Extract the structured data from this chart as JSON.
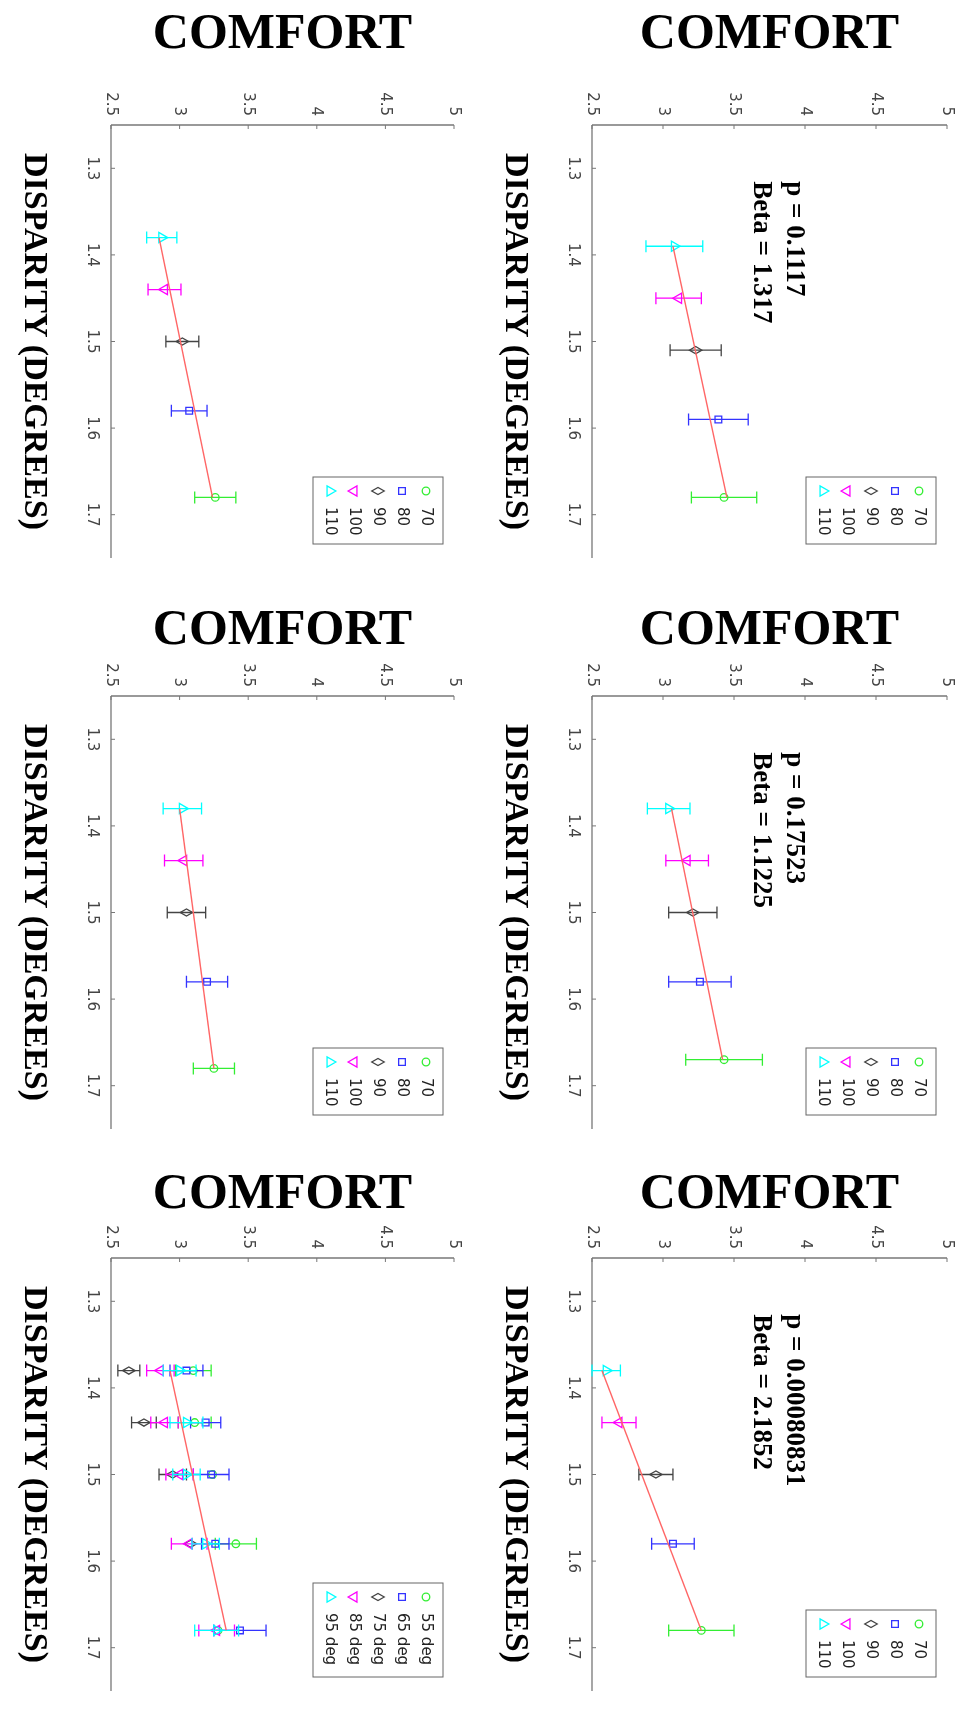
{
  "chart_data": [
    {
      "type": "scatter",
      "title": "COMFORT",
      "ylabel": "DISPARITY (DEGREES)",
      "xlim": [
        2.5,
        5
      ],
      "xticks": [
        2.5,
        3,
        3.5,
        4,
        4.5,
        5
      ],
      "ylim": [
        1.75,
        1.25
      ],
      "yticks": [
        1.3,
        1.4,
        1.5,
        1.6,
        1.7
      ],
      "legend": "bottom right",
      "series": [
        {
          "name": "70",
          "color": "#33ee33",
          "marker": "circle",
          "x": [
            3.26
          ],
          "values": [
            1.68
          ],
          "xerrors": [
            0.15
          ]
        },
        {
          "name": "80",
          "color": "#3333ff",
          "marker": "square",
          "x": [
            3.07
          ],
          "values": [
            1.58
          ],
          "xerrors": [
            0.13
          ]
        },
        {
          "name": "90",
          "color": "#444444",
          "marker": "diamond",
          "x": [
            3.02
          ],
          "values": [
            1.5
          ],
          "xerrors": [
            0.12
          ]
        },
        {
          "name": "100",
          "color": "#ff00ff",
          "marker": "triangle-down",
          "x": [
            2.89
          ],
          "values": [
            1.44
          ],
          "xerrors": [
            0.12
          ]
        },
        {
          "name": "110",
          "color": "#00ffff",
          "marker": "triangle",
          "x": [
            2.87
          ],
          "values": [
            1.38
          ],
          "xerrors": [
            0.11
          ]
        },
        {
          "type": "line",
          "color": "#ff6666",
          "x": [
            2.85,
            3.24
          ],
          "values": [
            1.38,
            1.68
          ]
        }
      ]
    },
    {
      "type": "scatter",
      "title": "COMFORT",
      "ylabel": "DISPARITY (DEGREES)",
      "xlim": [
        2.5,
        5
      ],
      "xticks": [
        2.5,
        3,
        3.5,
        4,
        4.5,
        5
      ],
      "ylim": [
        1.75,
        1.25
      ],
      "yticks": [
        1.3,
        1.4,
        1.5,
        1.6,
        1.7
      ],
      "legend": "bottom right",
      "annotations": [
        "p = 0.1117",
        "Beta = 1.317"
      ],
      "series": [
        {
          "name": "70",
          "color": "#33ee33",
          "marker": "circle",
          "x": [
            3.43
          ],
          "values": [
            1.68
          ],
          "xerrors": [
            0.23
          ]
        },
        {
          "name": "80",
          "color": "#3333ff",
          "marker": "square",
          "x": [
            3.39
          ],
          "values": [
            1.59
          ],
          "xerrors": [
            0.21
          ]
        },
        {
          "name": "90",
          "color": "#444444",
          "marker": "diamond",
          "x": [
            3.23
          ],
          "values": [
            1.51
          ],
          "xerrors": [
            0.18
          ]
        },
        {
          "name": "100",
          "color": "#ff00ff",
          "marker": "triangle-down",
          "x": [
            3.11
          ],
          "values": [
            1.45
          ],
          "xerrors": [
            0.16
          ]
        },
        {
          "name": "110",
          "color": "#00ffff",
          "marker": "triangle",
          "x": [
            3.08
          ],
          "values": [
            1.39
          ],
          "xerrors": [
            0.2
          ]
        },
        {
          "type": "line",
          "color": "#ff6666",
          "x": [
            3.07,
            3.45
          ],
          "values": [
            1.39,
            1.68
          ]
        }
      ]
    },
    {
      "type": "scatter",
      "title": "COMFORT",
      "ylabel": "DISPARITY (DEGREES)",
      "xlim": [
        2.5,
        5
      ],
      "xticks": [
        2.5,
        3,
        3.5,
        4,
        4.5,
        5
      ],
      "ylim": [
        1.75,
        1.25
      ],
      "yticks": [
        1.3,
        1.4,
        1.5,
        1.6,
        1.7
      ],
      "legend": "bottom right",
      "series": [
        {
          "name": "70",
          "color": "#33ee33",
          "marker": "circle",
          "x": [
            3.25
          ],
          "values": [
            1.68
          ],
          "xerrors": [
            0.15
          ]
        },
        {
          "name": "80",
          "color": "#3333ff",
          "marker": "square",
          "x": [
            3.2
          ],
          "values": [
            1.58
          ],
          "xerrors": [
            0.15
          ]
        },
        {
          "name": "90",
          "color": "#444444",
          "marker": "diamond",
          "x": [
            3.05
          ],
          "values": [
            1.5
          ],
          "xerrors": [
            0.14
          ]
        },
        {
          "name": "100",
          "color": "#ff00ff",
          "marker": "triangle-down",
          "x": [
            3.03
          ],
          "values": [
            1.44
          ],
          "xerrors": [
            0.14
          ]
        },
        {
          "name": "110",
          "color": "#00ffff",
          "marker": "triangle",
          "x": [
            3.02
          ],
          "values": [
            1.38
          ],
          "xerrors": [
            0.14
          ]
        },
        {
          "type": "line",
          "color": "#ff6666",
          "x": [
            3.0,
            3.25
          ],
          "values": [
            1.38,
            1.68
          ]
        }
      ]
    },
    {
      "type": "scatter",
      "title": "COMFORT",
      "ylabel": "DISPARITY (DEGREES)",
      "xlim": [
        2.5,
        5
      ],
      "xticks": [
        2.5,
        3,
        3.5,
        4,
        4.5,
        5
      ],
      "ylim": [
        1.75,
        1.25
      ],
      "yticks": [
        1.3,
        1.4,
        1.5,
        1.6,
        1.7
      ],
      "legend": "bottom right",
      "annotations": [
        "p = 0.17523",
        "Beta = 1.1225"
      ],
      "series": [
        {
          "name": "70",
          "color": "#33ee33",
          "marker": "circle",
          "x": [
            3.43
          ],
          "values": [
            1.67
          ],
          "xerrors": [
            0.27
          ]
        },
        {
          "name": "80",
          "color": "#3333ff",
          "marker": "square",
          "x": [
            3.26
          ],
          "values": [
            1.58
          ],
          "xerrors": [
            0.22
          ]
        },
        {
          "name": "90",
          "color": "#444444",
          "marker": "diamond",
          "x": [
            3.21
          ],
          "values": [
            1.5
          ],
          "xerrors": [
            0.17
          ]
        },
        {
          "name": "100",
          "color": "#ff00ff",
          "marker": "triangle-down",
          "x": [
            3.17
          ],
          "values": [
            1.44
          ],
          "xerrors": [
            0.15
          ]
        },
        {
          "name": "110",
          "color": "#00ffff",
          "marker": "triangle",
          "x": [
            3.04
          ],
          "values": [
            1.38
          ],
          "xerrors": [
            0.15
          ]
        },
        {
          "type": "line",
          "color": "#ff6666",
          "x": [
            3.06,
            3.42
          ],
          "values": [
            1.38,
            1.67
          ]
        }
      ]
    },
    {
      "type": "scatter",
      "title": "COMFORT",
      "ylabel": "DISPARITY (DEGREES)",
      "xlim": [
        2.5,
        5
      ],
      "xticks": [
        2.5,
        3,
        3.5,
        4,
        4.5,
        5
      ],
      "ylim": [
        1.75,
        1.25
      ],
      "yticks": [
        1.3,
        1.4,
        1.5,
        1.6,
        1.7
      ],
      "legend": "bottom right",
      "series": [
        {
          "name": "55 deg",
          "color": "#33ee33",
          "marker": "circle",
          "x": [
            3.1,
            3.11,
            3.24,
            3.41,
            3.28
          ],
          "values": [
            1.38,
            1.44,
            1.5,
            1.58,
            1.68
          ],
          "xerrors": [
            0.13,
            0.12,
            null,
            0.15,
            null
          ]
        },
        {
          "name": "65 deg",
          "color": "#3333ff",
          "marker": "square",
          "x": [
            3.05,
            3.19,
            3.23,
            3.26,
            3.44
          ],
          "values": [
            1.38,
            1.44,
            1.5,
            1.58,
            1.68
          ],
          "xerrors": [
            0.12,
            0.11,
            0.13,
            0.1,
            0.19
          ]
        },
        {
          "name": "75 deg",
          "color": "#444444",
          "marker": "diamond",
          "x": [
            2.63,
            2.74,
            2.95,
            3.08,
            null
          ],
          "values": [
            1.38,
            1.44,
            1.5,
            1.58,
            null
          ],
          "xerrors": [
            0.08,
            0.09,
            0.1,
            null,
            null
          ]
        },
        {
          "name": "85 deg",
          "color": "#ff00ff",
          "marker": "triangle-down",
          "x": [
            2.86,
            2.89,
            3.0,
            3.07,
            3.27
          ],
          "values": [
            1.38,
            1.44,
            1.5,
            1.58,
            1.68
          ],
          "xerrors": [
            0.1,
            0.1,
            0.1,
            0.13,
            0.13
          ]
        },
        {
          "name": "95 deg",
          "color": "#00ffff",
          "marker": "triangle",
          "x": [
            3.0,
            3.05,
            3.05,
            3.19,
            3.27
          ],
          "values": [
            1.38,
            1.44,
            1.5,
            1.58,
            1.68
          ],
          "xerrors": [
            0.12,
            0.12,
            0.1,
            0.1,
            0.16
          ]
        },
        {
          "type": "line",
          "color": "#ff6666",
          "x": [
            2.93,
            3.34
          ],
          "values": [
            1.38,
            1.68
          ]
        }
      ]
    },
    {
      "type": "scatter",
      "title": "COMFORT",
      "ylabel": "DISPARITY (DEGREES)",
      "xlim": [
        2.5,
        5
      ],
      "xticks": [
        2.5,
        3,
        3.5,
        4,
        4.5,
        5
      ],
      "ylim": [
        1.75,
        1.25
      ],
      "yticks": [
        1.3,
        1.4,
        1.5,
        1.6,
        1.7
      ],
      "legend": "bottom right",
      "annotations": [
        "p = 0.00080831",
        "Beta = 2.1852"
      ],
      "series": [
        {
          "name": "70",
          "color": "#33ee33",
          "marker": "circle",
          "x": [
            3.27
          ],
          "values": [
            1.68
          ],
          "xerrors": [
            0.23
          ]
        },
        {
          "name": "80",
          "color": "#3333ff",
          "marker": "square",
          "x": [
            3.07
          ],
          "values": [
            1.58
          ],
          "xerrors": [
            0.15
          ]
        },
        {
          "name": "90",
          "color": "#444444",
          "marker": "diamond",
          "x": [
            2.95
          ],
          "values": [
            1.5
          ],
          "xerrors": [
            0.12
          ]
        },
        {
          "name": "100",
          "color": "#ff00ff",
          "marker": "triangle-down",
          "x": [
            2.69
          ],
          "values": [
            1.44
          ],
          "xerrors": [
            0.12
          ]
        },
        {
          "name": "110",
          "color": "#00ffff",
          "marker": "triangle",
          "x": [
            2.6
          ],
          "values": [
            1.38
          ],
          "xerrors": [
            0.1
          ]
        },
        {
          "type": "line",
          "color": "#ff6666",
          "x": [
            2.57,
            3.27
          ],
          "values": [
            1.38,
            1.68
          ]
        }
      ]
    }
  ]
}
